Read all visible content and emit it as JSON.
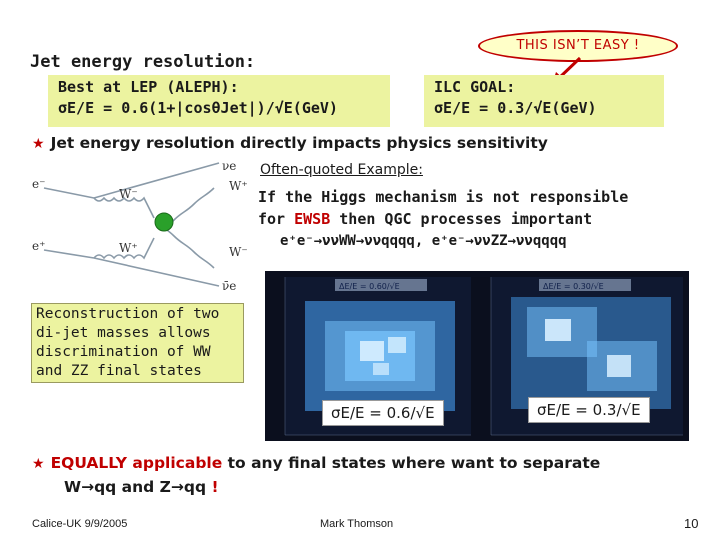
{
  "header": {
    "title": "Jet energy resolution:",
    "callout": "THIS ISN’T EASY !"
  },
  "lep_box": {
    "line1": "Best at LEP (ALEPH):",
    "line2": "σE/E = 0.6(1+|cosθJet|)/√E(GeV)"
  },
  "ilc_box": {
    "line1": "ILC GOAL:",
    "line2": "σE/E = 0.3/√E(GeV)"
  },
  "bullet1": "Jet energy resolution directly impacts physics sensitivity",
  "feynman": {
    "labels": [
      "e-",
      "e+",
      "νe",
      "ν̄e",
      "W-",
      "W+",
      "W+",
      "W-"
    ],
    "line_color": "#8a9aa8",
    "vertex_color": "#2aa02a"
  },
  "example": {
    "title": "Often-quoted Example:",
    "line1": "If the Higgs mechanism is not responsible",
    "line2_pre": "for ",
    "line2_red": "EWSB",
    "line2_post": " then QGC processes important",
    "line3": "e⁺e⁻→ννWW→ννqqqq, e⁺e⁻→ννZZ→ννqqqq"
  },
  "reconstruction": "Reconstruction of two di-jet masses allows discrimination of WW and ZZ final states",
  "plots": [
    {
      "caption": "σE/E = 0.6/√E",
      "inset": "ΔE/E = 0.60/√E"
    },
    {
      "caption": "σE/E = 0.3/√E",
      "inset": "ΔE/E = 0.30/√E"
    }
  ],
  "bullet2": {
    "red": "EQUALLY applicable",
    "rest": " to any final states where want to separate",
    "line2_pre": "W→qq and Z→qq",
    "line2_red": " !"
  },
  "footer": {
    "left": "Calice-UK 9/9/2005",
    "center": "Mark Thomson",
    "page": "10"
  }
}
